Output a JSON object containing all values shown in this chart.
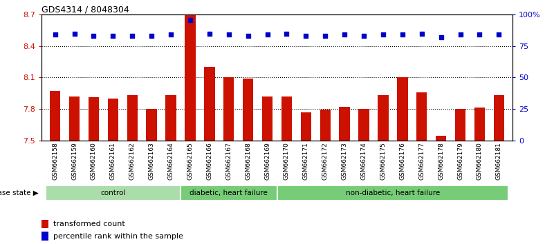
{
  "title": "GDS4314 / 8048304",
  "ylim_left": [
    7.5,
    8.7
  ],
  "ylim_right": [
    0,
    100
  ],
  "yticks_left": [
    7.5,
    7.8,
    8.1,
    8.4,
    8.7
  ],
  "yticks_right": [
    0,
    25,
    50,
    75,
    100
  ],
  "ytick_labels_left": [
    "7.5",
    "7.8",
    "8.1",
    "8.4",
    "8.7"
  ],
  "ytick_labels_right": [
    "0",
    "25",
    "50",
    "75",
    "100%"
  ],
  "samples": [
    "GSM662158",
    "GSM662159",
    "GSM662160",
    "GSM662161",
    "GSM662162",
    "GSM662163",
    "GSM662164",
    "GSM662165",
    "GSM662166",
    "GSM662167",
    "GSM662168",
    "GSM662169",
    "GSM662170",
    "GSM662171",
    "GSM662172",
    "GSM662173",
    "GSM662174",
    "GSM662175",
    "GSM662176",
    "GSM662177",
    "GSM662178",
    "GSM662179",
    "GSM662180",
    "GSM662181"
  ],
  "bar_values": [
    7.97,
    7.92,
    7.91,
    7.9,
    7.93,
    7.8,
    7.93,
    8.7,
    8.2,
    8.1,
    8.09,
    7.92,
    7.92,
    7.77,
    7.79,
    7.82,
    7.8,
    7.93,
    8.1,
    7.96,
    7.54,
    7.8,
    7.81,
    7.93
  ],
  "percentile_values": [
    84,
    85,
    83,
    83,
    83,
    83,
    84,
    96,
    85,
    84,
    83,
    84,
    85,
    83,
    83,
    84,
    83,
    84,
    84,
    85,
    82,
    84,
    84,
    84
  ],
  "bar_color": "#cc1100",
  "dot_color": "#0000cc",
  "group_boundaries": [
    0,
    7,
    12,
    24
  ],
  "group_labels": [
    "control",
    "diabetic, heart failure",
    "non-diabetic, heart failure"
  ],
  "group_colors_fill": [
    "#aaddaa",
    "#77cc77",
    "#77cc77"
  ],
  "legend_bar_label": "transformed count",
  "legend_dot_label": "percentile rank within the sample",
  "disease_state_label": "disease state",
  "plot_bg_color": "#ffffff",
  "tick_label_bg": "#cccccc",
  "tick_color_left": "#cc1100",
  "tick_color_right": "#0000cc"
}
